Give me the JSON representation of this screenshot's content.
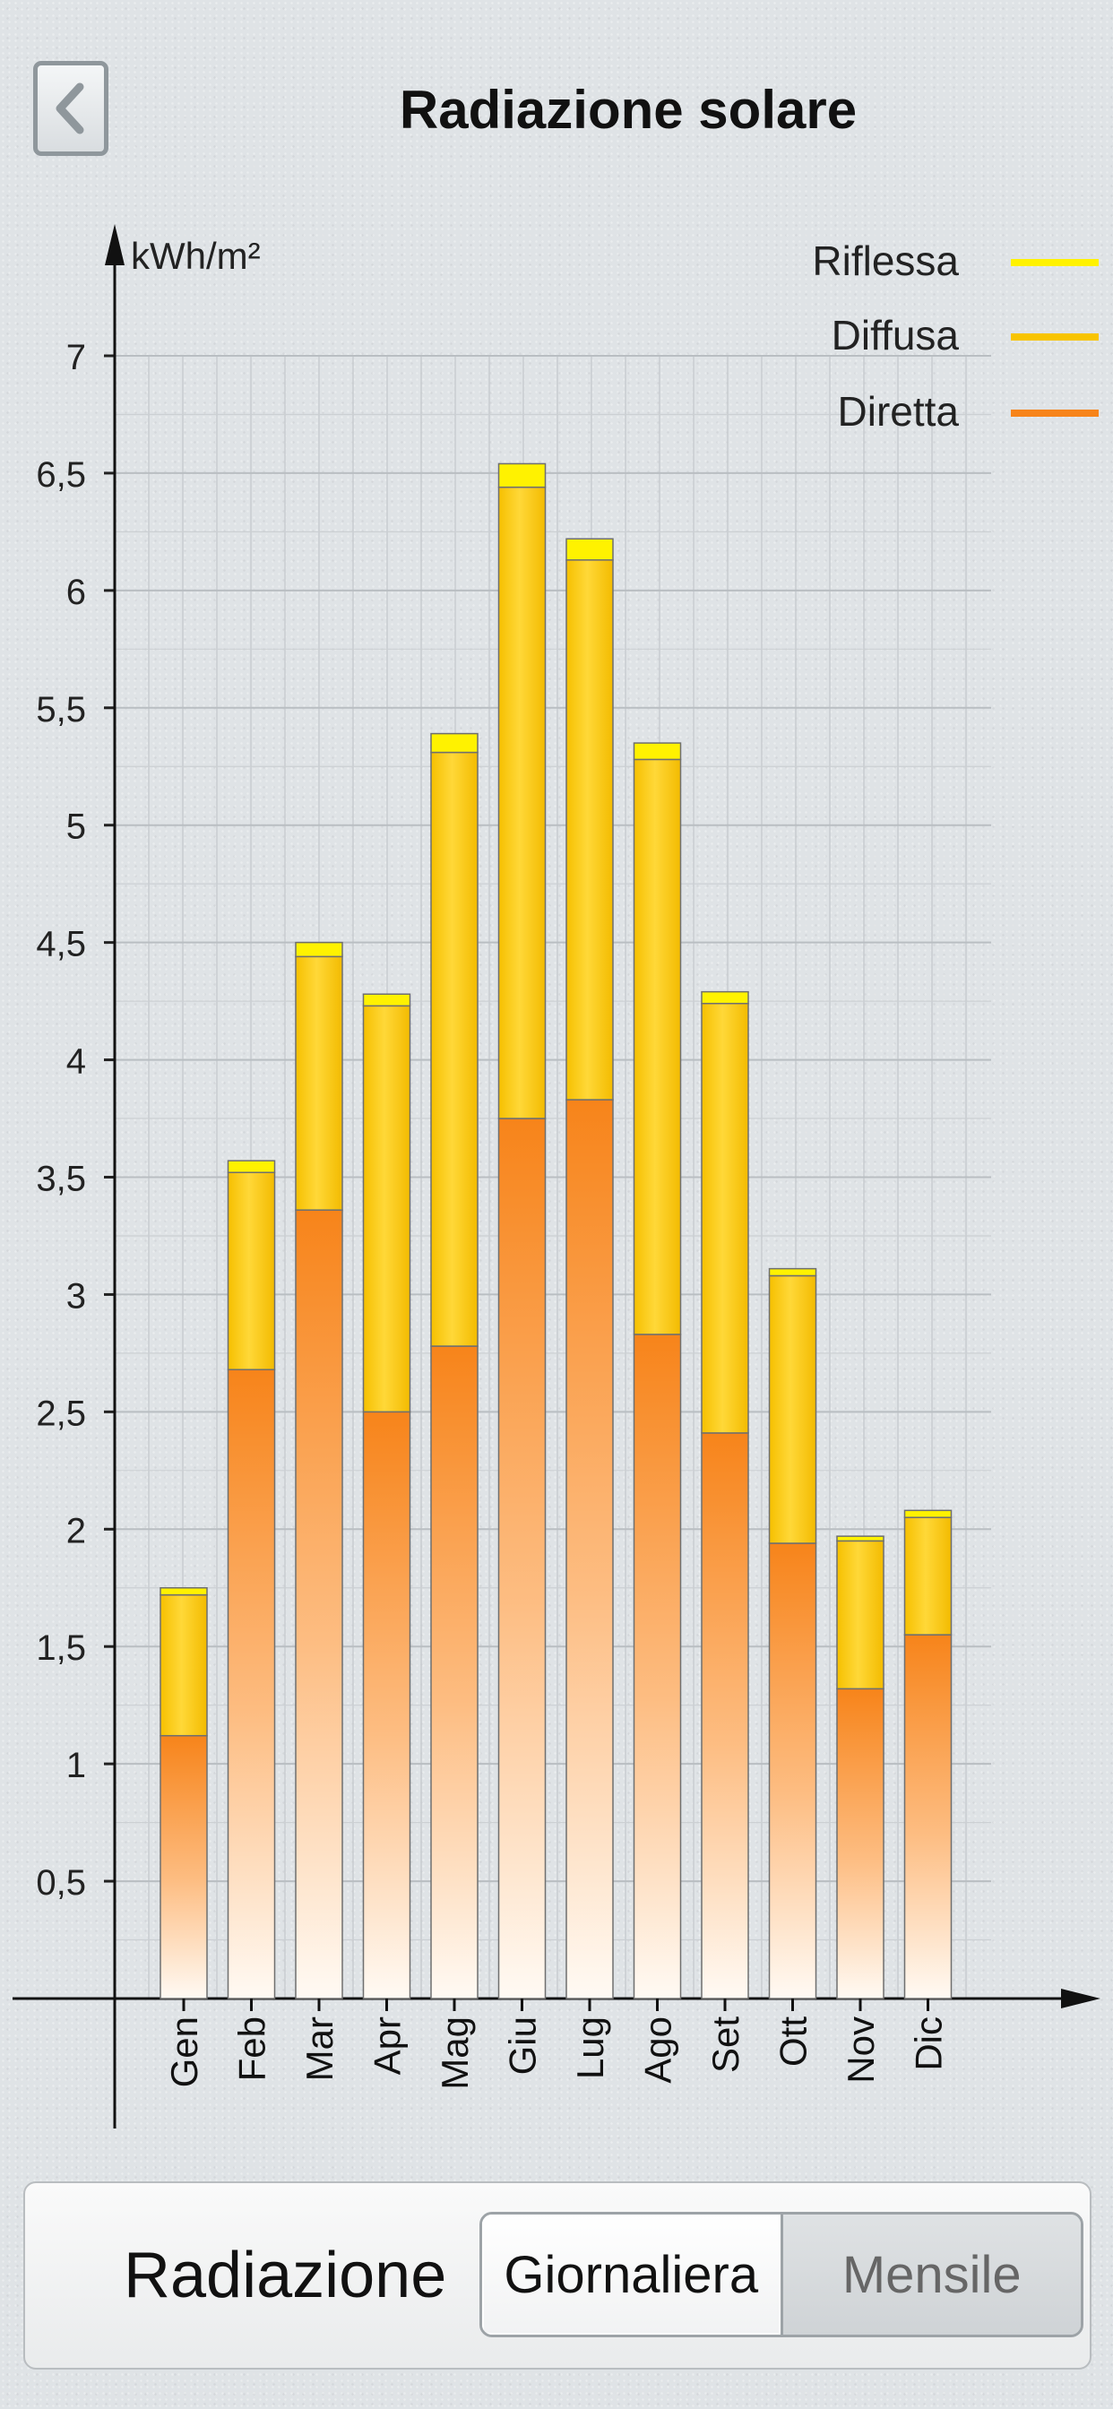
{
  "header": {
    "title": "Radiazione solare",
    "back_icon": "chevron-left-icon"
  },
  "chart_data": {
    "type": "bar",
    "stacked": true,
    "title": "",
    "ylabel": "kWh/m²",
    "xlabel": "",
    "ylim": [
      0,
      7
    ],
    "grid": true,
    "legend_position": "top-right",
    "yticks": [
      "0,5",
      "1",
      "1,5",
      "2",
      "2,5",
      "3",
      "3,5",
      "4",
      "4,5",
      "5",
      "5,5",
      "6",
      "6,5",
      "7"
    ],
    "categories": [
      "Gen",
      "Feb",
      "Mar",
      "Apr",
      "Mag",
      "Giu",
      "Lug",
      "Ago",
      "Set",
      "Ott",
      "Nov",
      "Dic"
    ],
    "series": [
      {
        "name": "Diretta",
        "color": "#f7841a",
        "values": [
          1.12,
          2.68,
          3.36,
          2.5,
          2.78,
          3.75,
          3.83,
          2.83,
          2.41,
          1.94,
          1.32,
          1.55
        ]
      },
      {
        "name": "Diffusa",
        "color": "#f8c400",
        "values": [
          0.6,
          0.84,
          1.08,
          1.73,
          2.53,
          2.69,
          2.3,
          2.45,
          1.83,
          1.14,
          0.63,
          0.5
        ]
      },
      {
        "name": "Riflessa",
        "color": "#fff200",
        "values": [
          0.03,
          0.05,
          0.06,
          0.05,
          0.08,
          0.1,
          0.09,
          0.07,
          0.05,
          0.03,
          0.02,
          0.03
        ]
      }
    ],
    "legend_order": [
      "Riflessa",
      "Diffusa",
      "Diretta"
    ]
  },
  "bottom": {
    "label": "Radiazione",
    "options": [
      "Giornaliera",
      "Mensile"
    ],
    "selected": "Giornaliera"
  }
}
